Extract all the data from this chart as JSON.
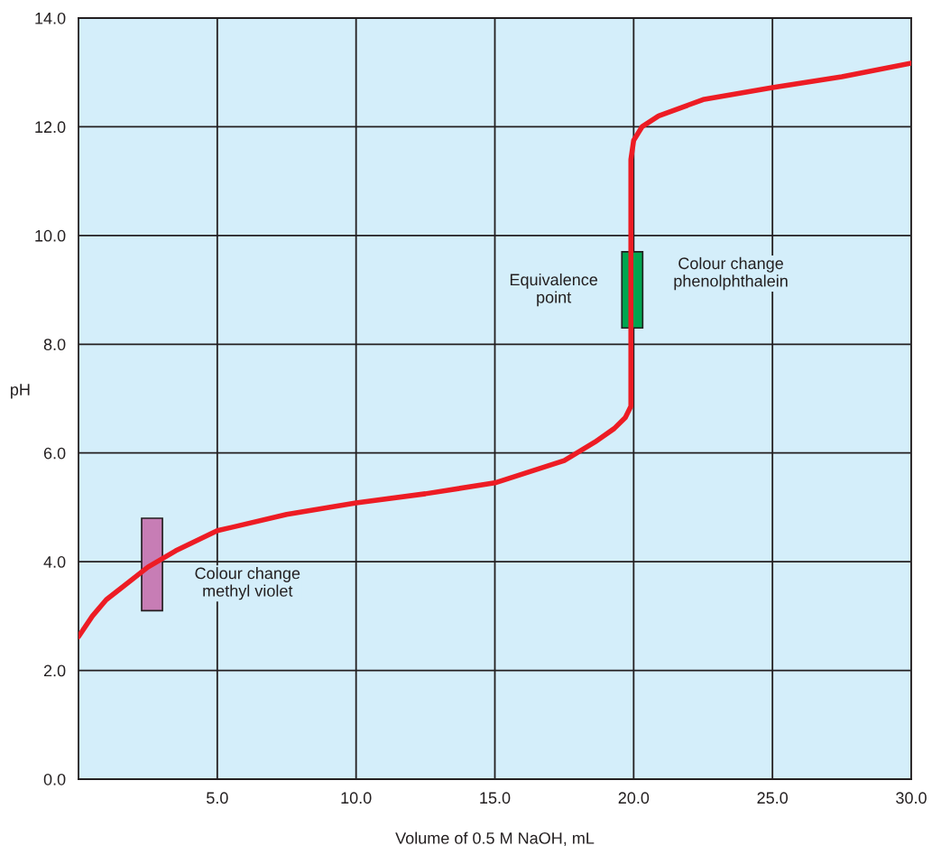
{
  "chart_data": {
    "type": "line",
    "xlabel": "Volume of 0.5 M NaOH, mL",
    "ylabel": "pH",
    "xlim": [
      0,
      30
    ],
    "ylim": [
      0,
      14
    ],
    "xticks": [
      {
        "value": 5,
        "label": "5.0"
      },
      {
        "value": 10,
        "label": "10.0"
      },
      {
        "value": 15,
        "label": "15.0"
      },
      {
        "value": 20,
        "label": "20.0"
      },
      {
        "value": 25,
        "label": "25.0"
      },
      {
        "value": 30,
        "label": "30.0"
      }
    ],
    "yticks": [
      {
        "value": 0,
        "label": "0.0"
      },
      {
        "value": 2,
        "label": "2.0"
      },
      {
        "value": 4,
        "label": "4.0"
      },
      {
        "value": 6,
        "label": "6.0"
      },
      {
        "value": 8,
        "label": "8.0"
      },
      {
        "value": 10,
        "label": "10.0"
      },
      {
        "value": 12,
        "label": "12.0"
      },
      {
        "value": 14,
        "label": "14.0"
      }
    ],
    "grid": true,
    "series": [
      {
        "color": "#ed1c24",
        "x": [
          0,
          0.5,
          1,
          1.5,
          2.5,
          3.5,
          5,
          7.5,
          10,
          12.5,
          15,
          17.5,
          18.6,
          19.3,
          19.7,
          19.9,
          19.9,
          20.0,
          20.3,
          20.9,
          22.5,
          25,
          27.5,
          30
        ],
        "values": [
          2.62,
          3.0,
          3.3,
          3.5,
          3.9,
          4.2,
          4.57,
          4.87,
          5.08,
          5.25,
          5.45,
          5.86,
          6.2,
          6.45,
          6.65,
          6.86,
          11.4,
          11.75,
          12.0,
          12.2,
          12.5,
          12.72,
          12.92,
          13.17
        ]
      },
      {
        "type": "bar",
        "color": "#c77db5",
        "x": [
          2.65
        ],
        "base": [
          3.1
        ],
        "values": [
          1.7
        ]
      },
      {
        "type": "bar",
        "color": "#00a650",
        "x": [
          19.95
        ],
        "base": [
          8.3
        ],
        "values": [
          1.4
        ]
      }
    ],
    "annotations": [
      {
        "text": "Colour change\nmethyl violet",
        "x": 3.05,
        "y": 3.6
      },
      {
        "text": "Equivalence\npoint",
        "x": 19.6,
        "y": 9.0
      },
      {
        "text": "Colour change\nphenolphthalein",
        "x": 20.3,
        "y": 9.3
      }
    ]
  }
}
